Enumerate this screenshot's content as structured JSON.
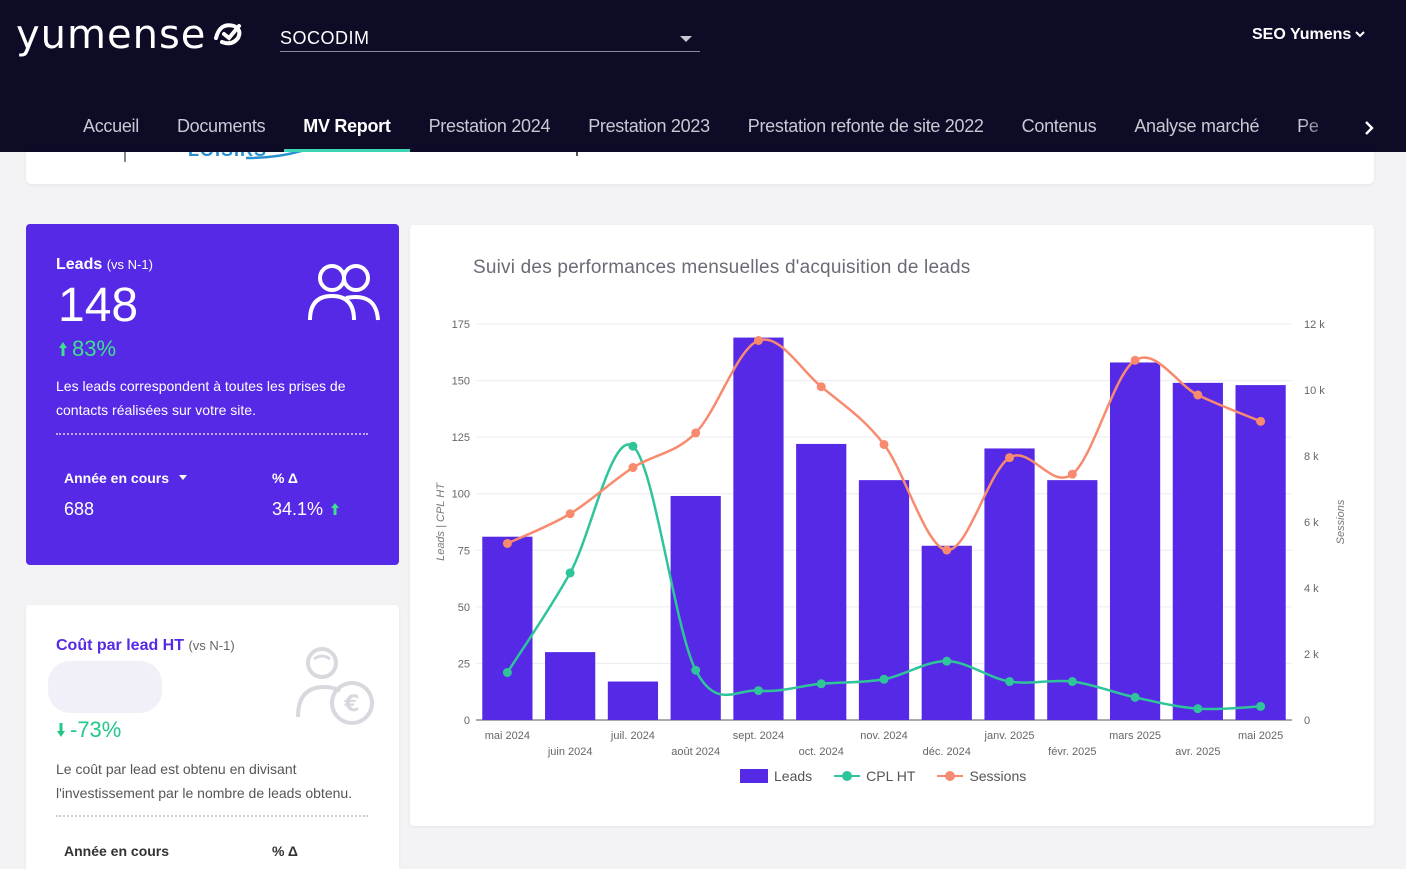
{
  "app": {
    "logo_text": "yumense",
    "logo_icon": "check-mark-icon"
  },
  "client_select": {
    "value": "SOCODIM"
  },
  "user": {
    "name": "SEO Yumens"
  },
  "nav": {
    "tabs": [
      {
        "label": "Accueil",
        "active": false
      },
      {
        "label": "Documents",
        "active": false
      },
      {
        "label": "MV Report",
        "active": true
      },
      {
        "label": "Prestation 2024",
        "active": false
      },
      {
        "label": "Prestation 2023",
        "active": false
      },
      {
        "label": "Prestation refonte de site 2022",
        "active": false
      },
      {
        "label": "Contenus",
        "active": false
      },
      {
        "label": "Analyse marché",
        "active": false
      },
      {
        "label": "Pe",
        "active": false
      }
    ]
  },
  "top_card": {
    "partial_text": "LOISIRS"
  },
  "leads_card": {
    "title": "Leads",
    "subtitle": "(vs N-1)",
    "value": "148",
    "delta": "83%",
    "description": "Les leads correspondent à toutes les prises de contacts réalisées sur votre site.",
    "col1_label": "Année en cours",
    "col2_label": "% Δ",
    "col1_value": "688",
    "col2_value": "34.1%"
  },
  "cpl_card": {
    "title": "Coût par lead HT",
    "subtitle": "(vs N-1)",
    "delta": "-73%",
    "description": "Le coût par lead est obtenu en divisant l'investissement par le nombre de leads obtenu.",
    "col1_label": "Année en cours",
    "col2_label": "% Δ"
  },
  "colors": {
    "accent": "#5629e6",
    "header_bg": "#0d0b26",
    "cpl": "#2fc49a",
    "sessions": "#f88b6f",
    "tab_underline": "#3dd6b5"
  },
  "chart_data": {
    "type": "bar",
    "title": "Suivi des performances mensuelles d'acquisition de leads",
    "ylabel": "Leads | CPL HT",
    "y2label": "Sessions",
    "ylim": [
      0,
      175
    ],
    "y2lim": [
      0,
      12000
    ],
    "yticks": [
      "0",
      "25",
      "50",
      "75",
      "100",
      "125",
      "150",
      "175"
    ],
    "y2ticks": [
      "0",
      "2 k",
      "4 k",
      "6 k",
      "8 k",
      "10 k",
      "12 k"
    ],
    "categories": [
      "mai 2024",
      "juin 2024",
      "juil. 2024",
      "août 2024",
      "sept. 2024",
      "oct. 2024",
      "nov. 2024",
      "déc. 2024",
      "janv. 2025",
      "févr. 2025",
      "mars 2025",
      "avr. 2025",
      "mai 2025"
    ],
    "series": [
      {
        "name": "Leads",
        "type": "bar",
        "axis": "left",
        "values": [
          81,
          30,
          17,
          99,
          169,
          122,
          106,
          77,
          120,
          106,
          158,
          149,
          148
        ]
      },
      {
        "name": "CPL HT",
        "type": "line",
        "axis": "left",
        "values": [
          21,
          65,
          121,
          22,
          13,
          16,
          18,
          26,
          17,
          17,
          10,
          5,
          6
        ]
      },
      {
        "name": "Sessions",
        "type": "line",
        "axis": "right",
        "values": [
          5350,
          6250,
          7650,
          8700,
          11500,
          10100,
          8350,
          5150,
          7950,
          7450,
          10900,
          9850,
          9050
        ]
      }
    ],
    "legend": "bottom",
    "grid": true
  }
}
